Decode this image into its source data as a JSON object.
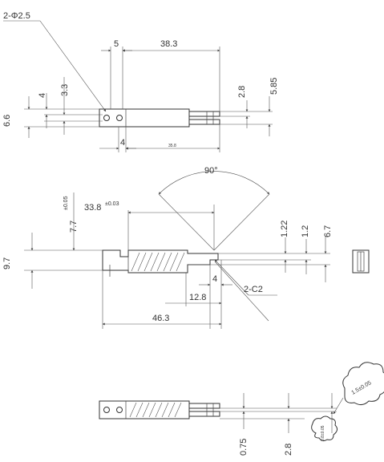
{
  "top_view": {
    "hole_callout": "2-Φ2.5",
    "dim_width_5": "5",
    "dim_length_38_3": "38.3",
    "dim_2_8": "2.8",
    "dim_5_85": "5.85",
    "dim_4_left": "4",
    "dim_3_3": "3.3",
    "dim_6_6": "6.6",
    "dim_4_bottom": "4",
    "dim_35_8": "35.8"
  },
  "side_view": {
    "angle": "90°",
    "dim_33_8": "33.8",
    "dim_33_8_tol": "±0.03",
    "dim_7_7": "7.7",
    "dim_7_7_tol": "±0.05",
    "dim_9_7": "9.7",
    "dim_1_22": "1.22",
    "dim_1_2": "1.2",
    "dim_6_7": "6.7",
    "dim_4": "4",
    "dim_12_8": "12.8",
    "chamfer": "2-C2",
    "dim_46_3": "46.3"
  },
  "bottom_view": {
    "dim_0_75": "0.75",
    "dim_2_8": "2.8",
    "note_cloud": "1.5±0.05",
    "note_small": "0.8±0.05"
  }
}
